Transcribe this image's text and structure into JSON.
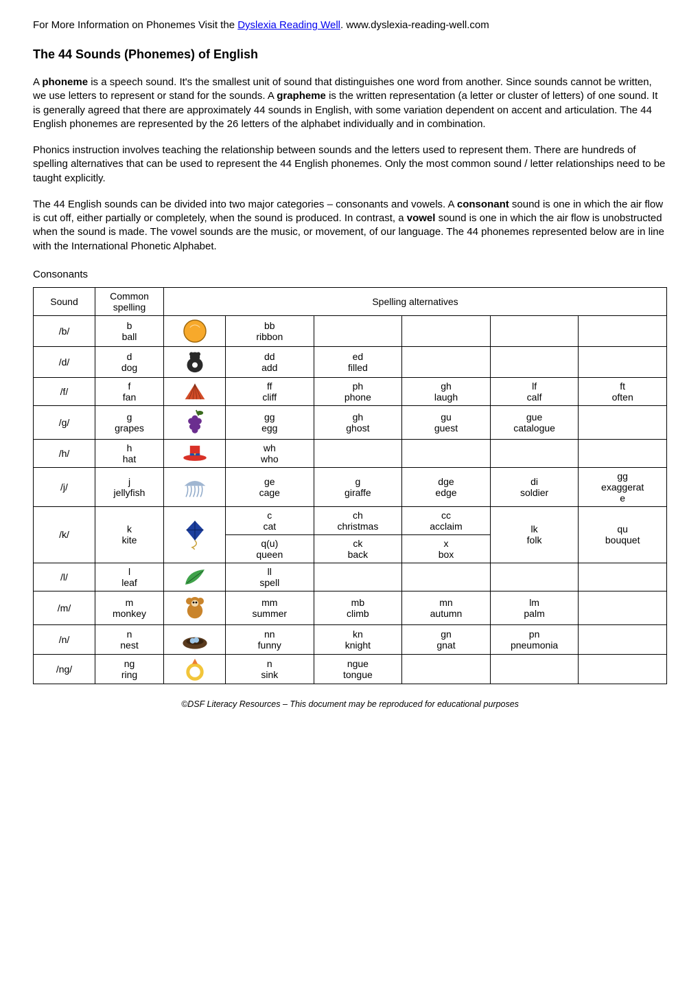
{
  "top_line_prefix": "For More Information on Phonemes Visit the ",
  "top_line_link": "Dyslexia Reading Well",
  "top_line_suffix": ". www.dyslexia-reading-well.com",
  "title": "The 44 Sounds (Phonemes) of English",
  "para1": "A <b>phoneme</b> is a speech sound. It's the smallest unit of sound that distinguishes one word from another. Since sounds cannot be written, we use letters to represent or stand for the sounds. A <b>grapheme</b> is the written representation (a letter or cluster of letters) of one sound. It is generally agreed that there are approximately 44 sounds in English, with some variation dependent on accent and articulation. The 44 English phonemes are represented by the 26 letters of the alphabet individually and in combination.",
  "para2": "Phonics instruction involves teaching the relationship between sounds and the letters used to represent them. There are hundreds of spelling alternatives that can be used to represent the 44 English phonemes. Only the most common sound / letter relationships need to be taught explicitly.",
  "para3": "The 44 English sounds can be divided into two major categories – consonants and vowels. A <b>consonant</b> sound is one in which the air flow is cut off, either partially or completely, when the sound is produced. In contrast, a <b>vowel</b> sound is one in which the air flow is unobstructed when the sound is made. The vowel sounds are the music, or movement, of our language. The 44 phonemes represented below are in line with the International Phonetic Alphabet.",
  "subhead": "Consonants",
  "header_sound": "Sound",
  "header_common": "Common spelling",
  "header_alt": "Spelling alternatives",
  "footer": "©DSF Literacy Resources – This document may be reproduced for educational purposes",
  "rows": {
    "b": {
      "sound": "/b/",
      "common": "b\nball",
      "alts": [
        "bb\nribbon",
        "",
        "",
        "",
        ""
      ]
    },
    "d": {
      "sound": "/d/",
      "common": "d\ndog",
      "alts": [
        "dd\nadd",
        "ed\nfilled",
        "",
        "",
        ""
      ]
    },
    "f": {
      "sound": "/f/",
      "common": "f\nfan",
      "alts": [
        "ff\ncliff",
        "ph\nphone",
        "gh\nlaugh",
        "lf\ncalf",
        "ft\noften"
      ]
    },
    "g": {
      "sound": "/g/",
      "common": "g\ngrapes",
      "alts": [
        "gg\negg",
        "gh\nghost",
        "gu\nguest",
        "gue\ncatalogue",
        ""
      ]
    },
    "h": {
      "sound": "/h/",
      "common": "h\nhat",
      "alts": [
        "wh\nwho",
        "",
        "",
        "",
        ""
      ]
    },
    "j": {
      "sound": "/j/",
      "common": "j\njellyfish",
      "alts": [
        "ge\ncage",
        "g\ngiraffe",
        "dge\nedge",
        "di\nsoldier",
        "gg\nexaggerat\ne"
      ]
    },
    "k1": {
      "sound": "/k/",
      "common": "k\nkite",
      "alts": [
        "c\ncat",
        "ch\nchristmas",
        "cc\nacclaim",
        "lk\nfolk",
        "qu\nbouquet"
      ]
    },
    "k2": {
      "alts": [
        "q(u)\nqueen",
        "ck\nback",
        "x\nbox"
      ]
    },
    "l": {
      "sound": "/l/",
      "common": "l\nleaf",
      "alts": [
        "ll\nspell",
        "",
        "",
        "",
        ""
      ]
    },
    "m": {
      "sound": "/m/",
      "common": "m\nmonkey",
      "alts": [
        "mm\nsummer",
        "mb\nclimb",
        "mn\nautumn",
        "lm\npalm",
        ""
      ]
    },
    "n": {
      "sound": "/n/",
      "common": "n\nnest",
      "alts": [
        "nn\nfunny",
        "kn\nknight",
        "gn\ngnat",
        "pn\npneumonia",
        ""
      ]
    },
    "ng": {
      "sound": "/ng/",
      "common": "ng\nring",
      "alts": [
        "n\nsink",
        "ngue\ntongue",
        "",
        "",
        ""
      ]
    }
  },
  "icons": {
    "ball": {
      "kind": "circle",
      "fill": "#f7a92b",
      "stroke": "#a0690e"
    },
    "dog": {
      "kind": "blob",
      "fill": "#2a2a2a"
    },
    "fan": {
      "kind": "fan",
      "fill": "#d24b27"
    },
    "grapes": {
      "kind": "cluster",
      "fill": "#6b2e8f"
    },
    "hat": {
      "kind": "hat",
      "fill": "#d93127"
    },
    "jellyfish": {
      "kind": "jelly",
      "fill": "#8fa9c9"
    },
    "kite": {
      "kind": "kite",
      "fill": "#1d3f9e"
    },
    "leaf": {
      "kind": "leaf",
      "fill": "#3fa24a"
    },
    "monkey": {
      "kind": "monkey",
      "fill": "#c9842b"
    },
    "nest": {
      "kind": "nest",
      "fill": "#5a3b1e"
    },
    "ring": {
      "kind": "ring",
      "fill": "#f2c53a"
    }
  }
}
